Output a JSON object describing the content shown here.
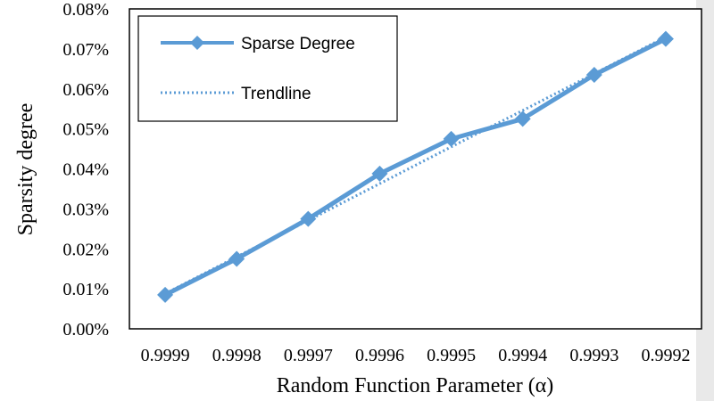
{
  "chart_data": {
    "type": "line",
    "title": "",
    "xlabel": "Random Function Parameter (α)",
    "ylabel": "Sparsity degree",
    "categories": [
      "0.9999",
      "0.9998",
      "0.9997",
      "0.9996",
      "0.9995",
      "0.9994",
      "0.9993",
      "0.9992"
    ],
    "series": [
      {
        "name": "Sparse Degree",
        "values": [
          0.0085,
          0.0175,
          0.0275,
          0.0388,
          0.0475,
          0.0525,
          0.0635,
          0.0725
        ],
        "color": "#5b9bd5",
        "marker": "diamond",
        "style": "solid"
      },
      {
        "name": "Trendline",
        "values": [
          0.0088,
          0.018,
          0.0271,
          0.0363,
          0.0455,
          0.0546,
          0.0638,
          0.073
        ],
        "color": "#5b9bd5",
        "style": "dotted"
      }
    ],
    "ylim": [
      0,
      0.0008
    ],
    "ylim_percent": [
      0,
      0.08
    ],
    "yticks": [
      "0.00%",
      "0.01%",
      "0.02%",
      "0.03%",
      "0.04%",
      "0.05%",
      "0.06%",
      "0.07%",
      "0.08%"
    ],
    "grid": false,
    "legend_position": "top-left"
  }
}
